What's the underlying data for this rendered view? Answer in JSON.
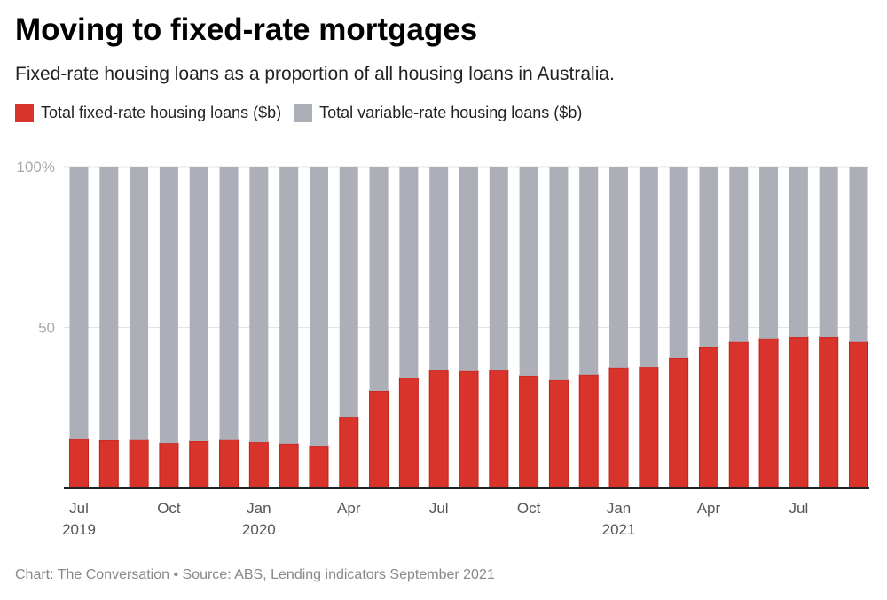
{
  "chart_data": {
    "type": "bar",
    "stacked": true,
    "title": "Moving to fixed-rate mortgages",
    "subtitle": "Fixed-rate housing loans as a proportion of all housing loans in Australia.",
    "categories": [
      "2019-07",
      "2019-08",
      "2019-09",
      "2019-10",
      "2019-11",
      "2019-12",
      "2020-01",
      "2020-02",
      "2020-03",
      "2020-04",
      "2020-05",
      "2020-06",
      "2020-07",
      "2020-08",
      "2020-09",
      "2020-10",
      "2020-11",
      "2020-12",
      "2021-01",
      "2021-02",
      "2021-03",
      "2021-04",
      "2021-05",
      "2021-06",
      "2021-07",
      "2021-08",
      "2021-09"
    ],
    "series": [
      {
        "name": "Total fixed-rate housing loans ($b)",
        "color": "#d9342b",
        "values": [
          15.4,
          14.9,
          15.2,
          14.0,
          14.6,
          15.2,
          14.3,
          13.8,
          13.2,
          22.0,
          30.3,
          34.4,
          36.6,
          36.4,
          36.6,
          35.0,
          33.6,
          35.3,
          37.5,
          37.7,
          40.5,
          43.8,
          45.5,
          46.6,
          47.1,
          47.1,
          45.5
        ]
      },
      {
        "name": "Total variable-rate housing loans ($b)",
        "color": "#adafb8",
        "values": [
          84.6,
          85.1,
          84.8,
          86.0,
          85.4,
          84.8,
          85.7,
          86.2,
          86.8,
          78.0,
          69.7,
          65.6,
          63.4,
          63.6,
          63.4,
          65.0,
          66.4,
          64.7,
          62.5,
          62.3,
          59.5,
          56.2,
          54.5,
          53.4,
          52.9,
          52.9,
          54.5
        ]
      }
    ],
    "ylim": [
      0,
      100
    ],
    "yticks": [
      {
        "value": 100,
        "label": "100%"
      },
      {
        "value": 50,
        "label": "50"
      }
    ],
    "xticks": [
      {
        "index": 0,
        "label": "Jul",
        "sub": "2019"
      },
      {
        "index": 3,
        "label": "Oct",
        "sub": ""
      },
      {
        "index": 6,
        "label": "Jan",
        "sub": "2020"
      },
      {
        "index": 9,
        "label": "Apr",
        "sub": ""
      },
      {
        "index": 12,
        "label": "Jul",
        "sub": ""
      },
      {
        "index": 15,
        "label": "Oct",
        "sub": ""
      },
      {
        "index": 18,
        "label": "Jan",
        "sub": "2021"
      },
      {
        "index": 21,
        "label": "Apr",
        "sub": ""
      },
      {
        "index": 24,
        "label": "Jul",
        "sub": ""
      }
    ],
    "grid": true,
    "legend_position": "top-left"
  },
  "footer": "Chart: The Conversation • Source: ABS, Lending indicators September 2021"
}
